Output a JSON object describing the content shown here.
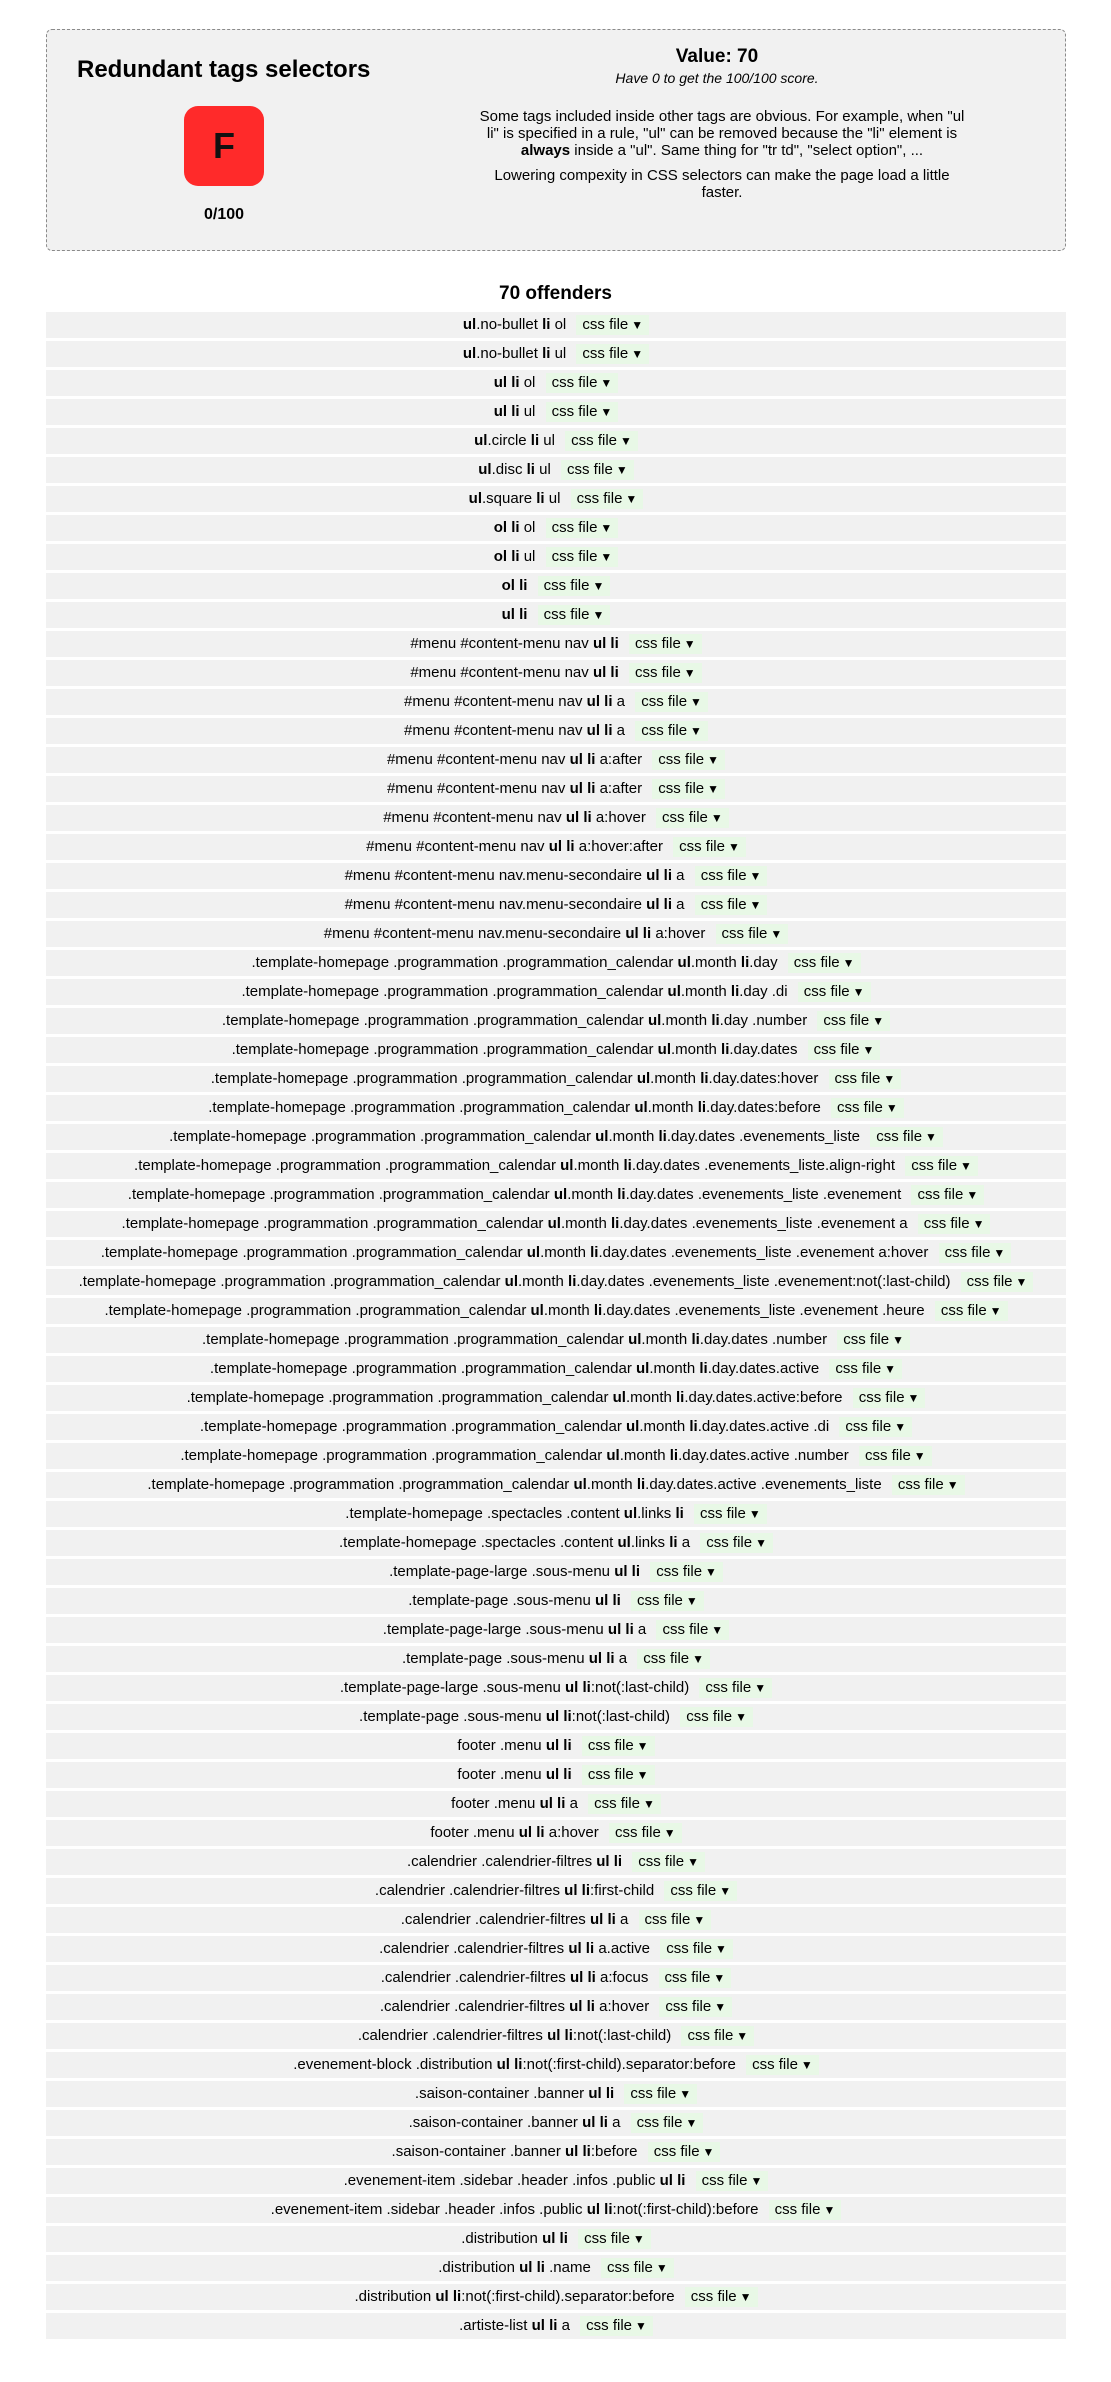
{
  "rule": {
    "title": "Redundant tags selectors",
    "grade": "F",
    "score_text": "0/100",
    "value_text": "Value: 70",
    "subvalue_text": "Have 0 to get the 100/100 score.",
    "desc_before_bold": "Some tags included inside other tags are obvious. For example, when \"ul li\" is specified in a rule, \"ul\" can be removed because the \"li\" element is ",
    "desc_bold": "always",
    "desc_after_bold": " inside a \"ul\". Same thing for \"tr td\", \"select option\", ...",
    "desc2": "Lowering compexity in CSS selectors can make the page load a little faster.",
    "colors": {
      "grade_bg": "#ff2a2a",
      "panel_bg": "#f1f1f1",
      "tag_bg": "#e8f8e6"
    }
  },
  "offenders_title": "70 offenders",
  "tag_label": "css file",
  "tag_icon": "dropdown-triangle-icon",
  "offenders": [
    [
      [
        "ul",
        true
      ],
      [
        ".no-bullet ",
        false
      ],
      [
        "li",
        true
      ],
      [
        " ol",
        false
      ]
    ],
    [
      [
        "ul",
        true
      ],
      [
        ".no-bullet ",
        false
      ],
      [
        "li",
        true
      ],
      [
        " ul",
        false
      ]
    ],
    [
      [
        "ul li",
        true
      ],
      [
        " ol",
        false
      ]
    ],
    [
      [
        "ul li",
        true
      ],
      [
        " ul",
        false
      ]
    ],
    [
      [
        "ul",
        true
      ],
      [
        ".circle ",
        false
      ],
      [
        "li",
        true
      ],
      [
        " ul",
        false
      ]
    ],
    [
      [
        "ul",
        true
      ],
      [
        ".disc ",
        false
      ],
      [
        "li",
        true
      ],
      [
        " ul",
        false
      ]
    ],
    [
      [
        "ul",
        true
      ],
      [
        ".square ",
        false
      ],
      [
        "li",
        true
      ],
      [
        " ul",
        false
      ]
    ],
    [
      [
        "ol li",
        true
      ],
      [
        " ol",
        false
      ]
    ],
    [
      [
        "ol li",
        true
      ],
      [
        " ul",
        false
      ]
    ],
    [
      [
        "ol li",
        true
      ]
    ],
    [
      [
        "ul li",
        true
      ]
    ],
    [
      [
        "#menu #content-menu nav ",
        false
      ],
      [
        "ul li",
        true
      ]
    ],
    [
      [
        "#menu #content-menu nav ",
        false
      ],
      [
        "ul li",
        true
      ]
    ],
    [
      [
        "#menu #content-menu nav ",
        false
      ],
      [
        "ul li",
        true
      ],
      [
        " a",
        false
      ]
    ],
    [
      [
        "#menu #content-menu nav ",
        false
      ],
      [
        "ul li",
        true
      ],
      [
        " a",
        false
      ]
    ],
    [
      [
        "#menu #content-menu nav ",
        false
      ],
      [
        "ul li",
        true
      ],
      [
        " a:after",
        false
      ]
    ],
    [
      [
        "#menu #content-menu nav ",
        false
      ],
      [
        "ul li",
        true
      ],
      [
        " a:after",
        false
      ]
    ],
    [
      [
        "#menu #content-menu nav ",
        false
      ],
      [
        "ul li",
        true
      ],
      [
        " a:hover",
        false
      ]
    ],
    [
      [
        "#menu #content-menu nav ",
        false
      ],
      [
        "ul li",
        true
      ],
      [
        " a:hover:after",
        false
      ]
    ],
    [
      [
        "#menu #content-menu nav.menu-secondaire ",
        false
      ],
      [
        "ul li",
        true
      ],
      [
        " a",
        false
      ]
    ],
    [
      [
        "#menu #content-menu nav.menu-secondaire ",
        false
      ],
      [
        "ul li",
        true
      ],
      [
        " a",
        false
      ]
    ],
    [
      [
        "#menu #content-menu nav.menu-secondaire ",
        false
      ],
      [
        "ul li",
        true
      ],
      [
        " a:hover",
        false
      ]
    ],
    [
      [
        ".template-homepage .programmation .programmation_calendar ",
        false
      ],
      [
        "ul",
        true
      ],
      [
        ".month ",
        false
      ],
      [
        "li",
        true
      ],
      [
        ".day",
        false
      ]
    ],
    [
      [
        ".template-homepage .programmation .programmation_calendar ",
        false
      ],
      [
        "ul",
        true
      ],
      [
        ".month ",
        false
      ],
      [
        "li",
        true
      ],
      [
        ".day .di",
        false
      ]
    ],
    [
      [
        ".template-homepage .programmation .programmation_calendar ",
        false
      ],
      [
        "ul",
        true
      ],
      [
        ".month ",
        false
      ],
      [
        "li",
        true
      ],
      [
        ".day .number",
        false
      ]
    ],
    [
      [
        ".template-homepage .programmation .programmation_calendar ",
        false
      ],
      [
        "ul",
        true
      ],
      [
        ".month ",
        false
      ],
      [
        "li",
        true
      ],
      [
        ".day.dates",
        false
      ]
    ],
    [
      [
        ".template-homepage .programmation .programmation_calendar ",
        false
      ],
      [
        "ul",
        true
      ],
      [
        ".month ",
        false
      ],
      [
        "li",
        true
      ],
      [
        ".day.dates:hover",
        false
      ]
    ],
    [
      [
        ".template-homepage .programmation .programmation_calendar ",
        false
      ],
      [
        "ul",
        true
      ],
      [
        ".month ",
        false
      ],
      [
        "li",
        true
      ],
      [
        ".day.dates:before",
        false
      ]
    ],
    [
      [
        ".template-homepage .programmation .programmation_calendar ",
        false
      ],
      [
        "ul",
        true
      ],
      [
        ".month ",
        false
      ],
      [
        "li",
        true
      ],
      [
        ".day.dates .evenements_liste",
        false
      ]
    ],
    [
      [
        ".template-homepage .programmation .programmation_calendar ",
        false
      ],
      [
        "ul",
        true
      ],
      [
        ".month ",
        false
      ],
      [
        "li",
        true
      ],
      [
        ".day.dates .evenements_liste.align-right",
        false
      ]
    ],
    [
      [
        ".template-homepage .programmation .programmation_calendar ",
        false
      ],
      [
        "ul",
        true
      ],
      [
        ".month ",
        false
      ],
      [
        "li",
        true
      ],
      [
        ".day.dates .evenements_liste .evenement",
        false
      ]
    ],
    [
      [
        ".template-homepage .programmation .programmation_calendar ",
        false
      ],
      [
        "ul",
        true
      ],
      [
        ".month ",
        false
      ],
      [
        "li",
        true
      ],
      [
        ".day.dates .evenements_liste .evenement a",
        false
      ]
    ],
    [
      [
        ".template-homepage .programmation .programmation_calendar ",
        false
      ],
      [
        "ul",
        true
      ],
      [
        ".month ",
        false
      ],
      [
        "li",
        true
      ],
      [
        ".day.dates .evenements_liste .evenement a:hover",
        false
      ]
    ],
    [
      [
        ".template-homepage .programmation .programmation_calendar ",
        false
      ],
      [
        "ul",
        true
      ],
      [
        ".month ",
        false
      ],
      [
        "li",
        true
      ],
      [
        ".day.dates .evenements_liste .evenement:not(:last-child)",
        false
      ]
    ],
    [
      [
        ".template-homepage .programmation .programmation_calendar ",
        false
      ],
      [
        "ul",
        true
      ],
      [
        ".month ",
        false
      ],
      [
        "li",
        true
      ],
      [
        ".day.dates .evenements_liste .evenement .heure",
        false
      ]
    ],
    [
      [
        ".template-homepage .programmation .programmation_calendar ",
        false
      ],
      [
        "ul",
        true
      ],
      [
        ".month ",
        false
      ],
      [
        "li",
        true
      ],
      [
        ".day.dates .number",
        false
      ]
    ],
    [
      [
        ".template-homepage .programmation .programmation_calendar ",
        false
      ],
      [
        "ul",
        true
      ],
      [
        ".month ",
        false
      ],
      [
        "li",
        true
      ],
      [
        ".day.dates.active",
        false
      ]
    ],
    [
      [
        ".template-homepage .programmation .programmation_calendar ",
        false
      ],
      [
        "ul",
        true
      ],
      [
        ".month ",
        false
      ],
      [
        "li",
        true
      ],
      [
        ".day.dates.active:before",
        false
      ]
    ],
    [
      [
        ".template-homepage .programmation .programmation_calendar ",
        false
      ],
      [
        "ul",
        true
      ],
      [
        ".month ",
        false
      ],
      [
        "li",
        true
      ],
      [
        ".day.dates.active .di",
        false
      ]
    ],
    [
      [
        ".template-homepage .programmation .programmation_calendar ",
        false
      ],
      [
        "ul",
        true
      ],
      [
        ".month ",
        false
      ],
      [
        "li",
        true
      ],
      [
        ".day.dates.active .number",
        false
      ]
    ],
    [
      [
        ".template-homepage .programmation .programmation_calendar ",
        false
      ],
      [
        "ul",
        true
      ],
      [
        ".month ",
        false
      ],
      [
        "li",
        true
      ],
      [
        ".day.dates.active .evenements_liste",
        false
      ]
    ],
    [
      [
        ".template-homepage .spectacles .content ",
        false
      ],
      [
        "ul",
        true
      ],
      [
        ".links ",
        false
      ],
      [
        "li",
        true
      ]
    ],
    [
      [
        ".template-homepage .spectacles .content ",
        false
      ],
      [
        "ul",
        true
      ],
      [
        ".links ",
        false
      ],
      [
        "li",
        true
      ],
      [
        " a",
        false
      ]
    ],
    [
      [
        ".template-page-large .sous-menu ",
        false
      ],
      [
        "ul li",
        true
      ]
    ],
    [
      [
        ".template-page .sous-menu ",
        false
      ],
      [
        "ul li",
        true
      ]
    ],
    [
      [
        ".template-page-large .sous-menu ",
        false
      ],
      [
        "ul li",
        true
      ],
      [
        " a",
        false
      ]
    ],
    [
      [
        ".template-page .sous-menu ",
        false
      ],
      [
        "ul li",
        true
      ],
      [
        " a",
        false
      ]
    ],
    [
      [
        ".template-page-large .sous-menu ",
        false
      ],
      [
        "ul li",
        true
      ],
      [
        ":not(:last-child)",
        false
      ]
    ],
    [
      [
        ".template-page .sous-menu ",
        false
      ],
      [
        "ul li",
        true
      ],
      [
        ":not(:last-child)",
        false
      ]
    ],
    [
      [
        "footer .menu ",
        false
      ],
      [
        "ul li",
        true
      ]
    ],
    [
      [
        "footer .menu ",
        false
      ],
      [
        "ul li",
        true
      ]
    ],
    [
      [
        "footer .menu ",
        false
      ],
      [
        "ul li",
        true
      ],
      [
        " a",
        false
      ]
    ],
    [
      [
        "footer .menu ",
        false
      ],
      [
        "ul li",
        true
      ],
      [
        " a:hover",
        false
      ]
    ],
    [
      [
        ".calendrier .calendrier-filtres ",
        false
      ],
      [
        "ul li",
        true
      ]
    ],
    [
      [
        ".calendrier .calendrier-filtres ",
        false
      ],
      [
        "ul li",
        true
      ],
      [
        ":first-child",
        false
      ]
    ],
    [
      [
        ".calendrier .calendrier-filtres ",
        false
      ],
      [
        "ul li",
        true
      ],
      [
        " a",
        false
      ]
    ],
    [
      [
        ".calendrier .calendrier-filtres ",
        false
      ],
      [
        "ul li",
        true
      ],
      [
        " a.active",
        false
      ]
    ],
    [
      [
        ".calendrier .calendrier-filtres ",
        false
      ],
      [
        "ul li",
        true
      ],
      [
        " a:focus",
        false
      ]
    ],
    [
      [
        ".calendrier .calendrier-filtres ",
        false
      ],
      [
        "ul li",
        true
      ],
      [
        " a:hover",
        false
      ]
    ],
    [
      [
        ".calendrier .calendrier-filtres ",
        false
      ],
      [
        "ul li",
        true
      ],
      [
        ":not(:last-child)",
        false
      ]
    ],
    [
      [
        ".evenement-block .distribution ",
        false
      ],
      [
        "ul li",
        true
      ],
      [
        ":not(:first-child).separator:before",
        false
      ]
    ],
    [
      [
        ".saison-container .banner ",
        false
      ],
      [
        "ul li",
        true
      ]
    ],
    [
      [
        ".saison-container .banner ",
        false
      ],
      [
        "ul li",
        true
      ],
      [
        " a",
        false
      ]
    ],
    [
      [
        ".saison-container .banner ",
        false
      ],
      [
        "ul li",
        true
      ],
      [
        ":before",
        false
      ]
    ],
    [
      [
        ".evenement-item .sidebar .header .infos .public ",
        false
      ],
      [
        "ul li",
        true
      ]
    ],
    [
      [
        ".evenement-item .sidebar .header .infos .public ",
        false
      ],
      [
        "ul li",
        true
      ],
      [
        ":not(:first-child):before",
        false
      ]
    ],
    [
      [
        ".distribution ",
        false
      ],
      [
        "ul li",
        true
      ]
    ],
    [
      [
        ".distribution ",
        false
      ],
      [
        "ul li",
        true
      ],
      [
        " .name",
        false
      ]
    ],
    [
      [
        ".distribution ",
        false
      ],
      [
        "ul li",
        true
      ],
      [
        ":not(:first-child).separator:before",
        false
      ]
    ],
    [
      [
        ".artiste-list ",
        false
      ],
      [
        "ul li",
        true
      ],
      [
        " a",
        false
      ]
    ]
  ]
}
